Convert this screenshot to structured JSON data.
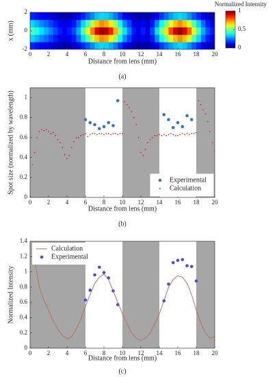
{
  "chart_data": [
    {
      "type": "heatmap",
      "xlabel": "Distance from lens (mm)",
      "ylabel": "x (mm)",
      "caption": "(a)",
      "x": [
        0.25,
        0.75,
        1.25,
        1.75,
        2.25,
        2.75,
        3.25,
        3.75,
        4.25,
        4.75,
        5.25,
        5.75,
        6.25,
        6.75,
        7.25,
        7.75,
        8.25,
        8.75,
        9.25,
        9.75,
        10.25,
        10.75,
        11.25,
        11.75,
        12.25,
        12.75,
        13.25,
        13.75,
        14.25,
        14.75,
        15.25,
        15.75,
        16.25,
        16.75,
        17.25,
        17.75,
        18.25,
        18.75,
        19.25,
        19.75
      ],
      "y": [
        -1.6,
        -0.8,
        0,
        0.8,
        1.6
      ],
      "values": [
        [
          0.16,
          0.14,
          0.12,
          0.11,
          0.09,
          0.07,
          0.05,
          0.04,
          0.05,
          0.07,
          0.11,
          0.16,
          0.21,
          0.26,
          0.32,
          0.34,
          0.33,
          0.3,
          0.25,
          0.18,
          0.12,
          0.09,
          0.05,
          0.04,
          0.05,
          0.04,
          0.07,
          0.12,
          0.18,
          0.23,
          0.28,
          0.32,
          0.34,
          0.32,
          0.27,
          0.21,
          0.16,
          0.11,
          0.07,
          0.05
        ],
        [
          0.34,
          0.3,
          0.26,
          0.23,
          0.19,
          0.15,
          0.11,
          0.09,
          0.11,
          0.15,
          0.23,
          0.34,
          0.45,
          0.56,
          0.68,
          0.74,
          0.71,
          0.64,
          0.53,
          0.38,
          0.26,
          0.19,
          0.11,
          0.08,
          0.11,
          0.08,
          0.15,
          0.26,
          0.38,
          0.49,
          0.6,
          0.69,
          0.74,
          0.68,
          0.59,
          0.45,
          0.34,
          0.23,
          0.15,
          0.11
        ],
        [
          0.45,
          0.4,
          0.35,
          0.3,
          0.25,
          0.2,
          0.15,
          0.12,
          0.15,
          0.2,
          0.3,
          0.45,
          0.6,
          0.75,
          0.9,
          0.98,
          0.95,
          0.85,
          0.7,
          0.5,
          0.35,
          0.25,
          0.15,
          0.1,
          0.15,
          0.1,
          0.2,
          0.35,
          0.5,
          0.65,
          0.8,
          0.92,
          0.98,
          0.9,
          0.78,
          0.6,
          0.45,
          0.3,
          0.2,
          0.15
        ],
        [
          0.34,
          0.3,
          0.26,
          0.23,
          0.19,
          0.15,
          0.11,
          0.09,
          0.11,
          0.15,
          0.23,
          0.34,
          0.45,
          0.56,
          0.68,
          0.74,
          0.71,
          0.64,
          0.53,
          0.38,
          0.26,
          0.19,
          0.11,
          0.08,
          0.11,
          0.08,
          0.15,
          0.26,
          0.38,
          0.49,
          0.6,
          0.69,
          0.74,
          0.68,
          0.59,
          0.45,
          0.34,
          0.23,
          0.15,
          0.11
        ],
        [
          0.16,
          0.14,
          0.12,
          0.11,
          0.09,
          0.07,
          0.05,
          0.04,
          0.05,
          0.07,
          0.11,
          0.16,
          0.21,
          0.26,
          0.32,
          0.34,
          0.33,
          0.3,
          0.25,
          0.18,
          0.12,
          0.09,
          0.05,
          0.04,
          0.05,
          0.04,
          0.07,
          0.12,
          0.18,
          0.23,
          0.28,
          0.32,
          0.34,
          0.32,
          0.27,
          0.21,
          0.16,
          0.11,
          0.07,
          0.05
        ]
      ],
      "xlim": [
        0,
        20
      ],
      "xticks": [
        0,
        2,
        4,
        6,
        8,
        10,
        12,
        14,
        16,
        18,
        20
      ],
      "ylim": [
        -2,
        2
      ],
      "yticks": [
        -2,
        0,
        2
      ],
      "colormap": "jet",
      "colorbar": {
        "label": "Normalized Intensity",
        "lim": [
          0,
          1
        ],
        "ticks": [
          0,
          0.5,
          1
        ]
      }
    },
    {
      "type": "scatter",
      "xlabel": "Distance from lens (mm)",
      "ylabel": "Spot size (normalized by wavelength)",
      "caption": "(b)",
      "xlim": [
        0,
        20
      ],
      "xticks": [
        0,
        2,
        4,
        6,
        8,
        10,
        12,
        14,
        16,
        18,
        20
      ],
      "ylim": [
        0,
        1.1
      ],
      "yticks": [
        0,
        0.2,
        0.4,
        0.6,
        0.8,
        1
      ],
      "shaded_regions": [
        [
          0,
          6
        ],
        [
          10,
          14
        ],
        [
          18,
          20
        ]
      ],
      "shade_color": "#a6a6a6",
      "legend": "lower right",
      "series": [
        {
          "name": "Experimental",
          "color": "#2e75d6",
          "mode": "markers",
          "x": [
            6,
            6.5,
            7,
            7.5,
            8,
            8.5,
            9,
            9.5,
            14.5,
            15,
            15.5,
            16,
            16.5,
            17,
            17.5
          ],
          "values": [
            0.78,
            0.75,
            0.73,
            0.69,
            0.71,
            0.75,
            0.72,
            0.97,
            0.83,
            0.78,
            0.7,
            0.75,
            0.71,
            0.82,
            0.78
          ]
        },
        {
          "name": "Calculation",
          "color": "#e02020",
          "mode": "points",
          "x": [
            0,
            0.25,
            0.5,
            0.75,
            1,
            1.25,
            1.5,
            1.75,
            2,
            2.25,
            2.5,
            2.75,
            3,
            3.25,
            3.5,
            3.75,
            4,
            4.25,
            4.5,
            4.75,
            5,
            5.25,
            5.5,
            5.75,
            6,
            6.25,
            6.5,
            6.75,
            7,
            7.25,
            7.5,
            7.75,
            8,
            8.25,
            8.5,
            8.75,
            9,
            9.25,
            9.5,
            9.75,
            10,
            10.25,
            10.5,
            10.75,
            11,
            11.25,
            11.5,
            11.75,
            12,
            12.25,
            12.5,
            12.75,
            13,
            13.25,
            13.5,
            13.75,
            14,
            14.25,
            14.5,
            14.75,
            15,
            15.25,
            15.5,
            15.75,
            16,
            16.25,
            16.5,
            16.75,
            17,
            17.25,
            17.5,
            17.75,
            18,
            18.25,
            18.5,
            18.75,
            19,
            19.25,
            19.5,
            19.75,
            20
          ],
          "values": [
            0.3,
            0.33,
            0.45,
            0.6,
            0.66,
            0.68,
            0.67,
            0.68,
            0.66,
            0.64,
            0.65,
            0.62,
            0.58,
            0.55,
            0.5,
            0.43,
            0.39,
            0.42,
            0.5,
            0.56,
            0.6,
            0.6,
            0.62,
            0.63,
            0.64,
            0.61,
            0.63,
            0.64,
            0.64,
            0.63,
            0.64,
            0.64,
            0.63,
            0.64,
            0.64,
            0.63,
            0.64,
            0.64,
            0.63,
            0.64,
            0.64,
            0.96,
            0.93,
            0.9,
            0.86,
            0.8,
            0.73,
            0.6,
            0.45,
            0.42,
            0.48,
            0.55,
            0.58,
            0.6,
            0.62,
            0.62,
            0.63,
            0.62,
            0.63,
            0.62,
            0.63,
            0.64,
            0.63,
            0.62,
            0.62,
            0.63,
            0.64,
            0.63,
            0.64,
            0.63,
            0.64,
            0.64,
            0.65,
            0.97,
            0.93,
            0.88,
            0.84,
            0.76,
            0.66,
            0.55,
            0.47
          ]
        }
      ]
    },
    {
      "type": "line",
      "xlabel": "Distance from lens (mm)",
      "ylabel": "Normalized Intensity",
      "caption": "(c)",
      "xlim": [
        0,
        20
      ],
      "xticks": [
        0,
        2,
        4,
        6,
        8,
        10,
        12,
        14,
        16,
        18,
        20
      ],
      "ylim": [
        0,
        1.4
      ],
      "yticks": [
        0,
        0.2,
        0.4,
        0.6,
        0.8,
        1,
        1.2,
        1.4
      ],
      "shaded_regions": [
        [
          0,
          6
        ],
        [
          10,
          14
        ],
        [
          18,
          20
        ]
      ],
      "shade_color": "#a6a6a6",
      "legend": "upper left",
      "series": [
        {
          "name": "Calculation",
          "color": "#b5735a",
          "mode": "line",
          "x": [
            0.25,
            0.5,
            1,
            1.5,
            2,
            2.5,
            3,
            3.5,
            4,
            4.5,
            5,
            5.5,
            6,
            6.5,
            7,
            7.5,
            8,
            8.5,
            9,
            9.5,
            10,
            10.5,
            11,
            11.5,
            12,
            12.5,
            13,
            13.5,
            14,
            14.5,
            15,
            15.5,
            16,
            16.5,
            17,
            17.5,
            18,
            18.5,
            19,
            19.5,
            20
          ],
          "values": [
            1.38,
            1.15,
            0.8,
            0.62,
            0.5,
            0.36,
            0.25,
            0.17,
            0.12,
            0.15,
            0.25,
            0.38,
            0.55,
            0.7,
            0.85,
            0.93,
            0.97,
            0.9,
            0.75,
            0.6,
            0.45,
            0.32,
            0.2,
            0.13,
            0.1,
            0.13,
            0.2,
            0.32,
            0.45,
            0.62,
            0.8,
            0.9,
            0.95,
            0.93,
            0.85,
            0.7,
            0.5,
            0.33,
            0.2,
            0.13,
            0.15
          ]
        },
        {
          "name": "Experimental",
          "color": "#4a4ae8",
          "mode": "markers",
          "x": [
            6,
            6.5,
            7,
            7.5,
            8,
            8.5,
            9,
            9.5,
            14.5,
            15,
            15.5,
            16,
            16.5,
            17,
            17.5,
            18
          ],
          "values": [
            0.63,
            0.76,
            0.96,
            1.06,
            0.99,
            0.92,
            0.75,
            0.57,
            0.62,
            0.84,
            1.12,
            1.15,
            1.16,
            1.08,
            1.07,
            0.88
          ]
        }
      ]
    }
  ]
}
